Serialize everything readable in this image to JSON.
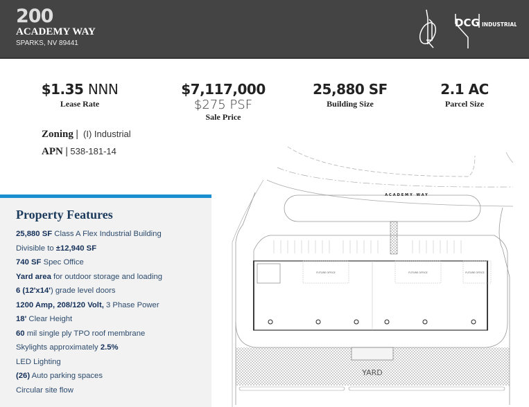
{
  "header": {
    "number": "200",
    "street": "ACADEMY WAY",
    "city": "SPARKS, NV 89441",
    "logo_text": "DCG",
    "logo_sub": "INDUSTRIAL"
  },
  "stats": [
    {
      "value": "$1.35",
      "value_suffix": "NNN",
      "label": "Lease Rate"
    },
    {
      "value": "$7,117,000",
      "sub": "$275 PSF",
      "label": "Sale Price"
    },
    {
      "value": "25,880 SF",
      "label": "Building Size"
    },
    {
      "value": "2.1 AC",
      "label": "Parcel Size"
    }
  ],
  "zoning": {
    "label": "Zoning",
    "sep": "|",
    "value": "(I) Industrial"
  },
  "apn": {
    "label": "APN",
    "sep": "|",
    "value": "538-181-14"
  },
  "features": {
    "title": "Property Features",
    "items": [
      {
        "bold": "25,880 SF",
        "text": " Class A Flex Industrial Building"
      },
      {
        "pre": "Divisible to ",
        "bold": "±12,940 SF"
      },
      {
        "bold": "740 SF",
        "text": " Spec Office"
      },
      {
        "bold": "Yard area",
        "text": " for outdoor storage and loading"
      },
      {
        "bold": "6 (12'x14'",
        "text": ") grade level doors"
      },
      {
        "bold": "1200 Amp, 208/120 Volt,",
        "text": " 3 Phase Power"
      },
      {
        "bold": "18'",
        "text": " Clear Height"
      },
      {
        "bold": "60",
        "text": " mil single ply TPO roof membrane"
      },
      {
        "pre": "Skylights approximately ",
        "bold": "2.5%"
      },
      {
        "pre": "LED Lighting"
      },
      {
        "bold": "(26)",
        "text": " Auto parking spaces"
      },
      {
        "pre": "Circular site flow"
      }
    ]
  },
  "site_plan": {
    "street_label": "ACADEMY WAY",
    "office_label": "FUTURE OFFICE",
    "yard_label": "YARD"
  },
  "colors": {
    "header_bg": "#444444",
    "accent": "#1a8fcf",
    "navy": "#1b3a5c"
  }
}
